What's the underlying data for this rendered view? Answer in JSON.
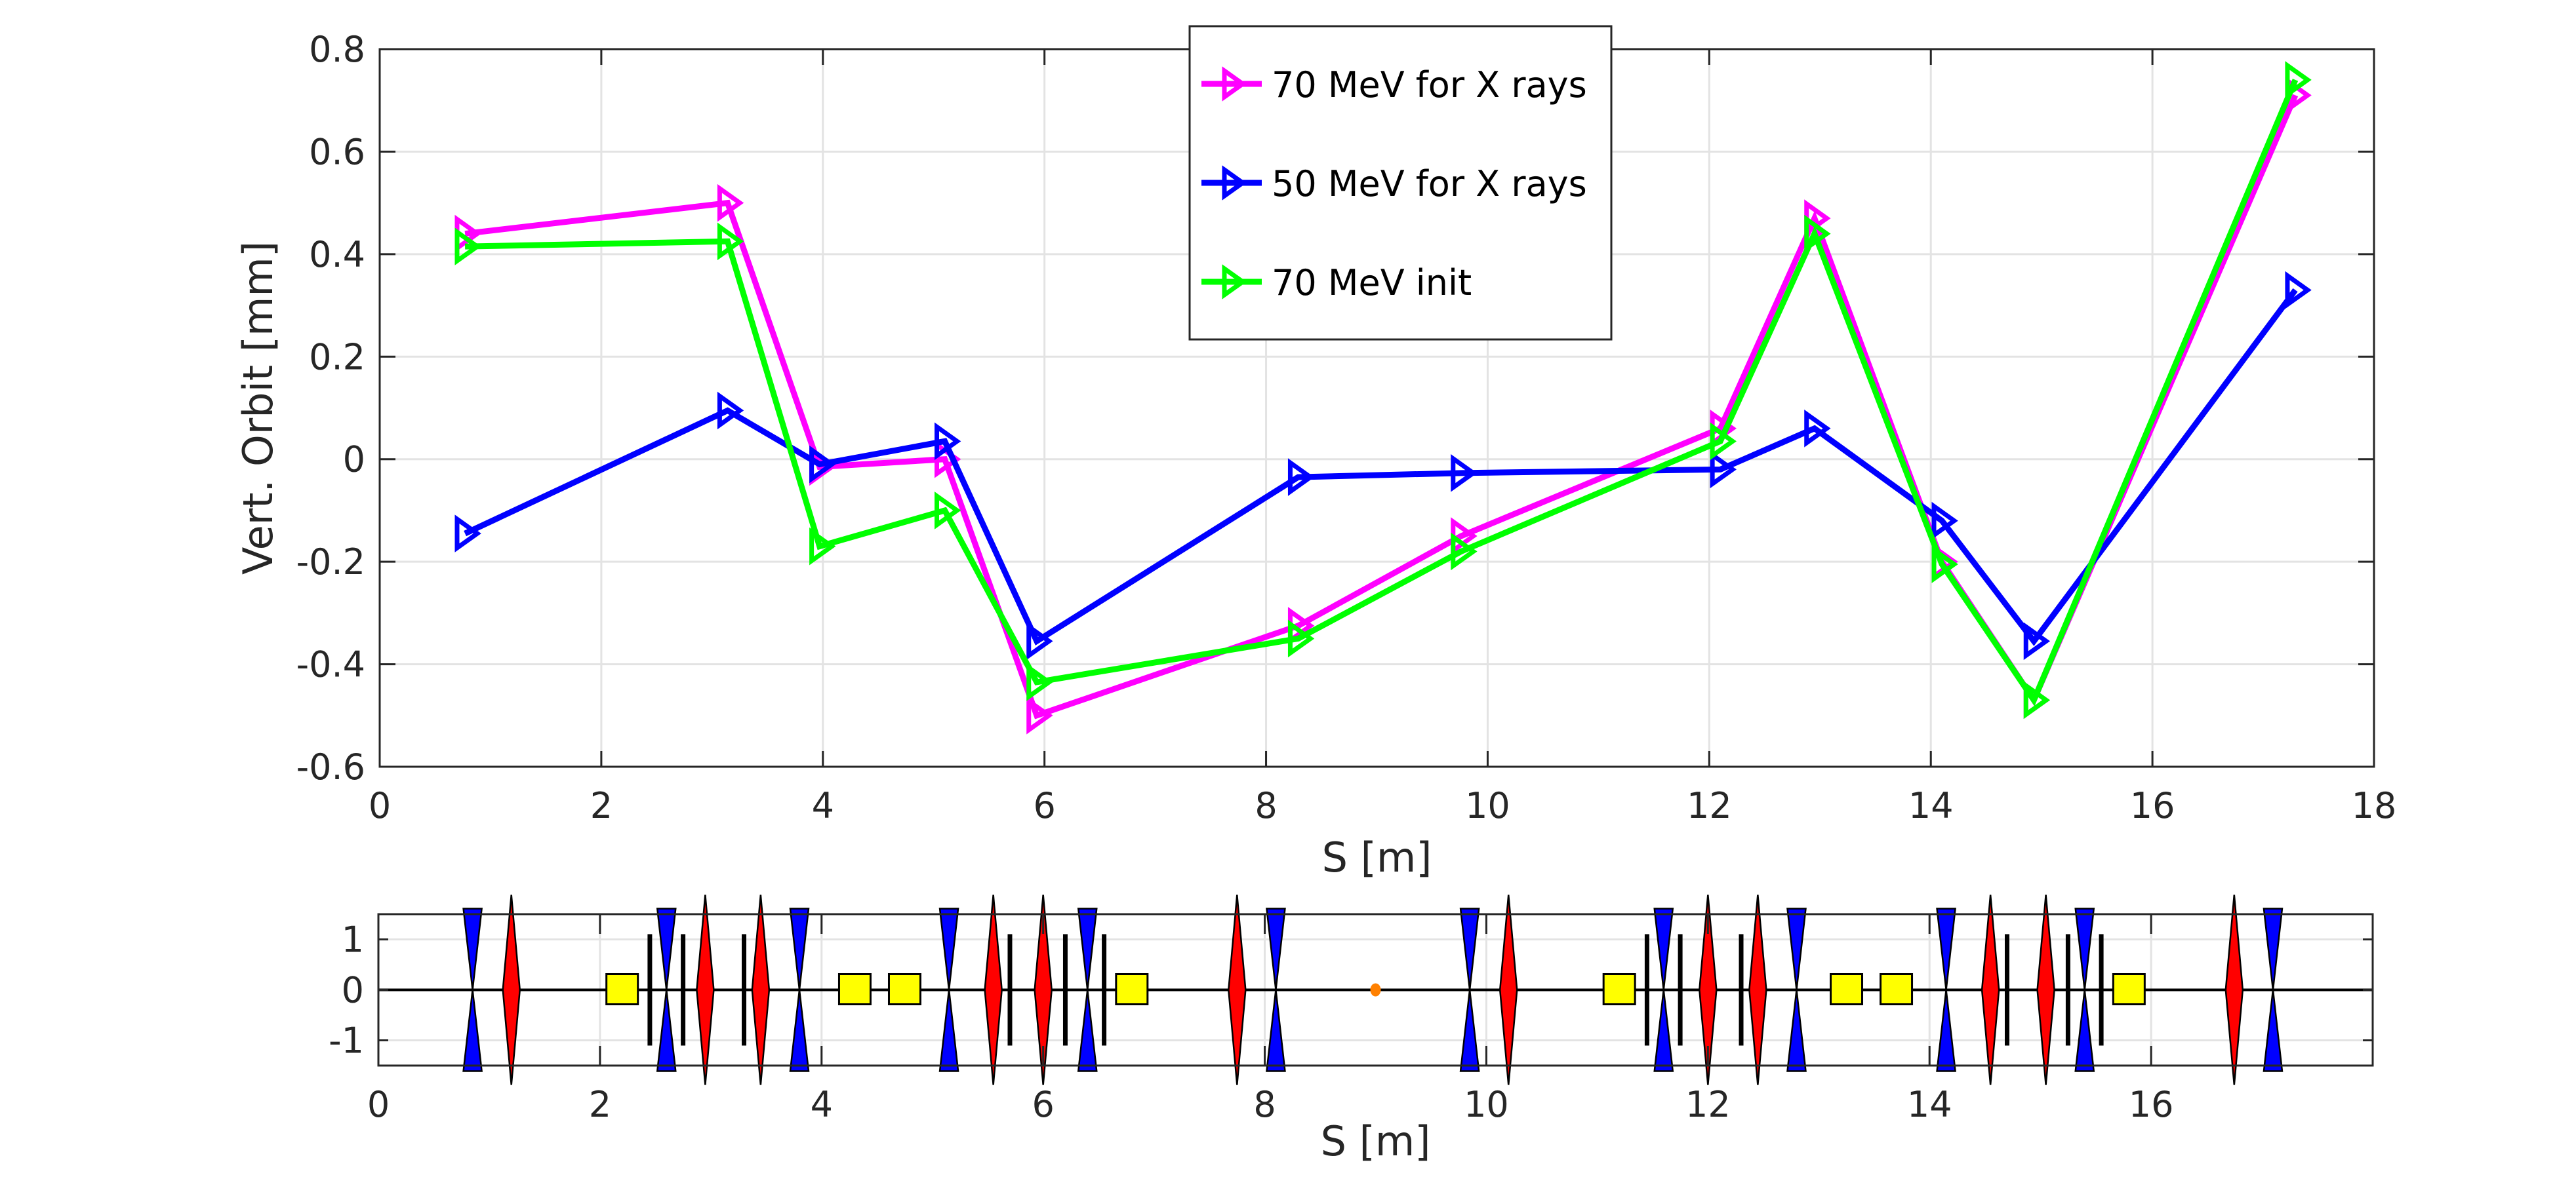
{
  "chart_data": [
    {
      "type": "line",
      "title": "",
      "xlabel": "S [m]",
      "ylabel": "Vert. Orbit [mm]",
      "xlim": [
        0,
        18
      ],
      "ylim": [
        -0.6,
        0.8
      ],
      "xticks": [
        0,
        2,
        4,
        6,
        8,
        10,
        12,
        14,
        16,
        18
      ],
      "yticks": [
        -0.6,
        -0.4,
        -0.2,
        0,
        0.2,
        0.4,
        0.6,
        0.8
      ],
      "ytick_labels": [
        "-0.6",
        "-0.4",
        "-0.2",
        "0",
        "0.2",
        "0.4",
        "0.6",
        "0.8"
      ],
      "grid": true,
      "legend_position": "top-center",
      "marker": "triangle-right",
      "x": [
        0.77,
        3.14,
        3.97,
        5.1,
        5.93,
        8.29,
        9.76,
        12.1,
        12.95,
        14.1,
        14.93,
        17.29
      ],
      "series": [
        {
          "name": "70 MeV for X rays",
          "color": "#ff00ff",
          "values": [
            0.44,
            0.5,
            -0.015,
            0.0,
            -0.5,
            -0.325,
            -0.15,
            0.06,
            0.47,
            -0.2,
            -0.47,
            0.71
          ]
        },
        {
          "name": "50 MeV for X rays",
          "color": "#0000ff",
          "values": [
            -0.145,
            0.095,
            -0.01,
            0.035,
            -0.355,
            -0.035,
            -0.027,
            -0.02,
            0.06,
            -0.12,
            -0.355,
            0.33
          ]
        },
        {
          "name": "70 MeV init",
          "color": "#00ff00",
          "values": [
            0.415,
            0.425,
            -0.17,
            -0.1,
            -0.435,
            -0.35,
            -0.18,
            0.035,
            0.44,
            -0.205,
            -0.47,
            0.74
          ]
        }
      ]
    },
    {
      "type": "lattice",
      "xlabel": "S [m]",
      "xlim": [
        0,
        18
      ],
      "ylim": [
        -1.5,
        1.5
      ],
      "xticks": [
        0,
        2,
        4,
        6,
        8,
        10,
        12,
        14,
        16
      ],
      "yticks": [
        -1,
        0,
        1
      ],
      "ytick_labels": [
        "-1",
        "0",
        "1"
      ],
      "grid": true,
      "colors": {
        "focusing_quad": "#ff0000",
        "defocusing_quad": "#0000ff",
        "dipole": "#ffff00",
        "marker": "#000000",
        "source": "#ff8000"
      },
      "elements": [
        {
          "kind": "defocusing_quad",
          "s": 0.85
        },
        {
          "kind": "focusing_quad",
          "s": 1.2
        },
        {
          "kind": "dipole",
          "s": 2.2
        },
        {
          "kind": "marker",
          "s": 2.45
        },
        {
          "kind": "defocusing_quad",
          "s": 2.6
        },
        {
          "kind": "marker",
          "s": 2.75
        },
        {
          "kind": "focusing_quad",
          "s": 2.95
        },
        {
          "kind": "marker",
          "s": 3.3
        },
        {
          "kind": "focusing_quad",
          "s": 3.45
        },
        {
          "kind": "defocusing_quad",
          "s": 3.8
        },
        {
          "kind": "dipole",
          "s": 4.3
        },
        {
          "kind": "dipole",
          "s": 4.75
        },
        {
          "kind": "defocusing_quad",
          "s": 5.15
        },
        {
          "kind": "focusing_quad",
          "s": 5.55
        },
        {
          "kind": "marker",
          "s": 5.7
        },
        {
          "kind": "focusing_quad",
          "s": 6.0
        },
        {
          "kind": "marker",
          "s": 6.2
        },
        {
          "kind": "defocusing_quad",
          "s": 6.4
        },
        {
          "kind": "marker",
          "s": 6.55
        },
        {
          "kind": "dipole",
          "s": 6.8
        },
        {
          "kind": "focusing_quad",
          "s": 7.75
        },
        {
          "kind": "defocusing_quad",
          "s": 8.1
        },
        {
          "kind": "source",
          "s": 9.0
        },
        {
          "kind": "defocusing_quad",
          "s": 9.85
        },
        {
          "kind": "focusing_quad",
          "s": 10.2
        },
        {
          "kind": "dipole",
          "s": 11.2
        },
        {
          "kind": "marker",
          "s": 11.45
        },
        {
          "kind": "defocusing_quad",
          "s": 11.6
        },
        {
          "kind": "marker",
          "s": 11.75
        },
        {
          "kind": "focusing_quad",
          "s": 12.0
        },
        {
          "kind": "marker",
          "s": 12.3
        },
        {
          "kind": "focusing_quad",
          "s": 12.45
        },
        {
          "kind": "defocusing_quad",
          "s": 12.8
        },
        {
          "kind": "dipole",
          "s": 13.25
        },
        {
          "kind": "dipole",
          "s": 13.7
        },
        {
          "kind": "defocusing_quad",
          "s": 14.15
        },
        {
          "kind": "focusing_quad",
          "s": 14.55
        },
        {
          "kind": "marker",
          "s": 14.7
        },
        {
          "kind": "focusing_quad",
          "s": 15.05
        },
        {
          "kind": "marker",
          "s": 15.25
        },
        {
          "kind": "defocusing_quad",
          "s": 15.4
        },
        {
          "kind": "marker",
          "s": 15.55
        },
        {
          "kind": "dipole",
          "s": 15.8
        },
        {
          "kind": "focusing_quad",
          "s": 16.75
        },
        {
          "kind": "defocusing_quad",
          "s": 17.1
        }
      ]
    }
  ]
}
